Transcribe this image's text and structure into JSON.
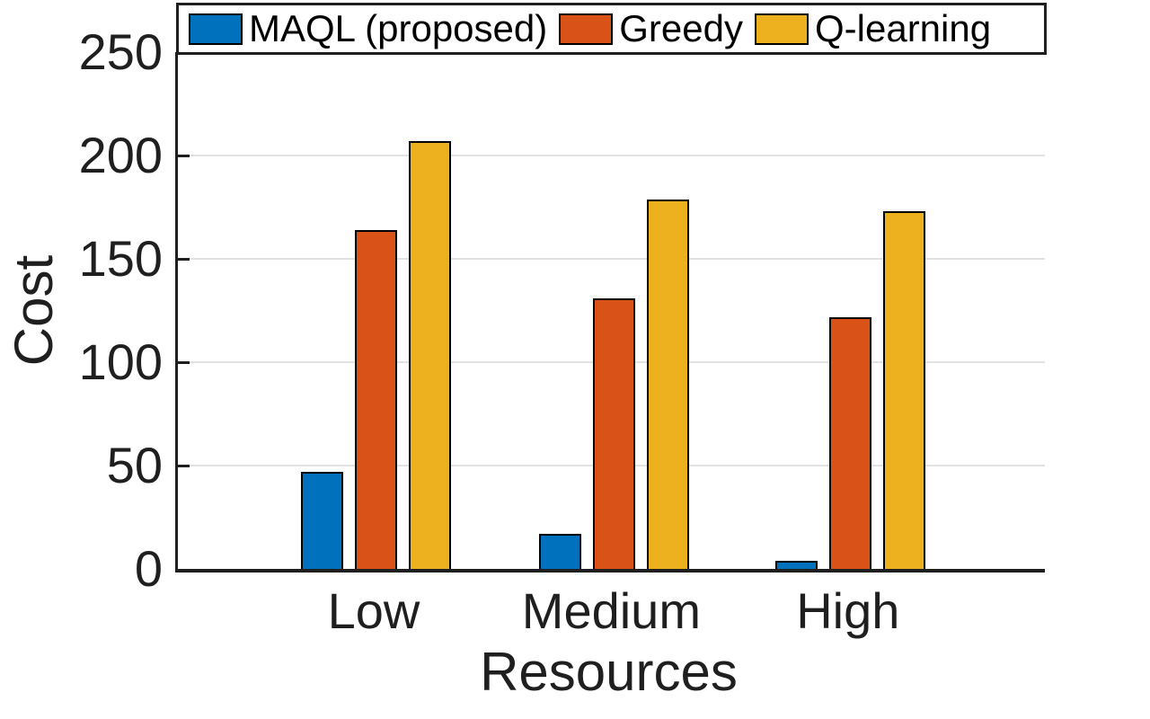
{
  "figure": {
    "background": "#ffffff",
    "axis_color": "#1f1f1f",
    "grid_color": "#e2e2e2",
    "text_color": "#1f1f1f"
  },
  "chart_data": {
    "type": "bar",
    "title": "",
    "xlabel": "Resources",
    "ylabel": "Cost",
    "categories": [
      "Low",
      "Medium",
      "High"
    ],
    "series": [
      {
        "name": "MAQL (proposed)",
        "color": "#0072BD",
        "values": [
          46,
          16,
          3
        ]
      },
      {
        "name": "Greedy",
        "color": "#D95319",
        "values": [
          163,
          130,
          121
        ]
      },
      {
        "name": "Q-learning",
        "color": "#EDB120",
        "values": [
          206,
          178,
          172
        ]
      }
    ],
    "ylim": [
      0,
      250
    ],
    "yticks": [
      0,
      50,
      100,
      150,
      200,
      250
    ],
    "grid": "horizontal",
    "legend_position": "top",
    "bar_edge_color": "#000000"
  }
}
